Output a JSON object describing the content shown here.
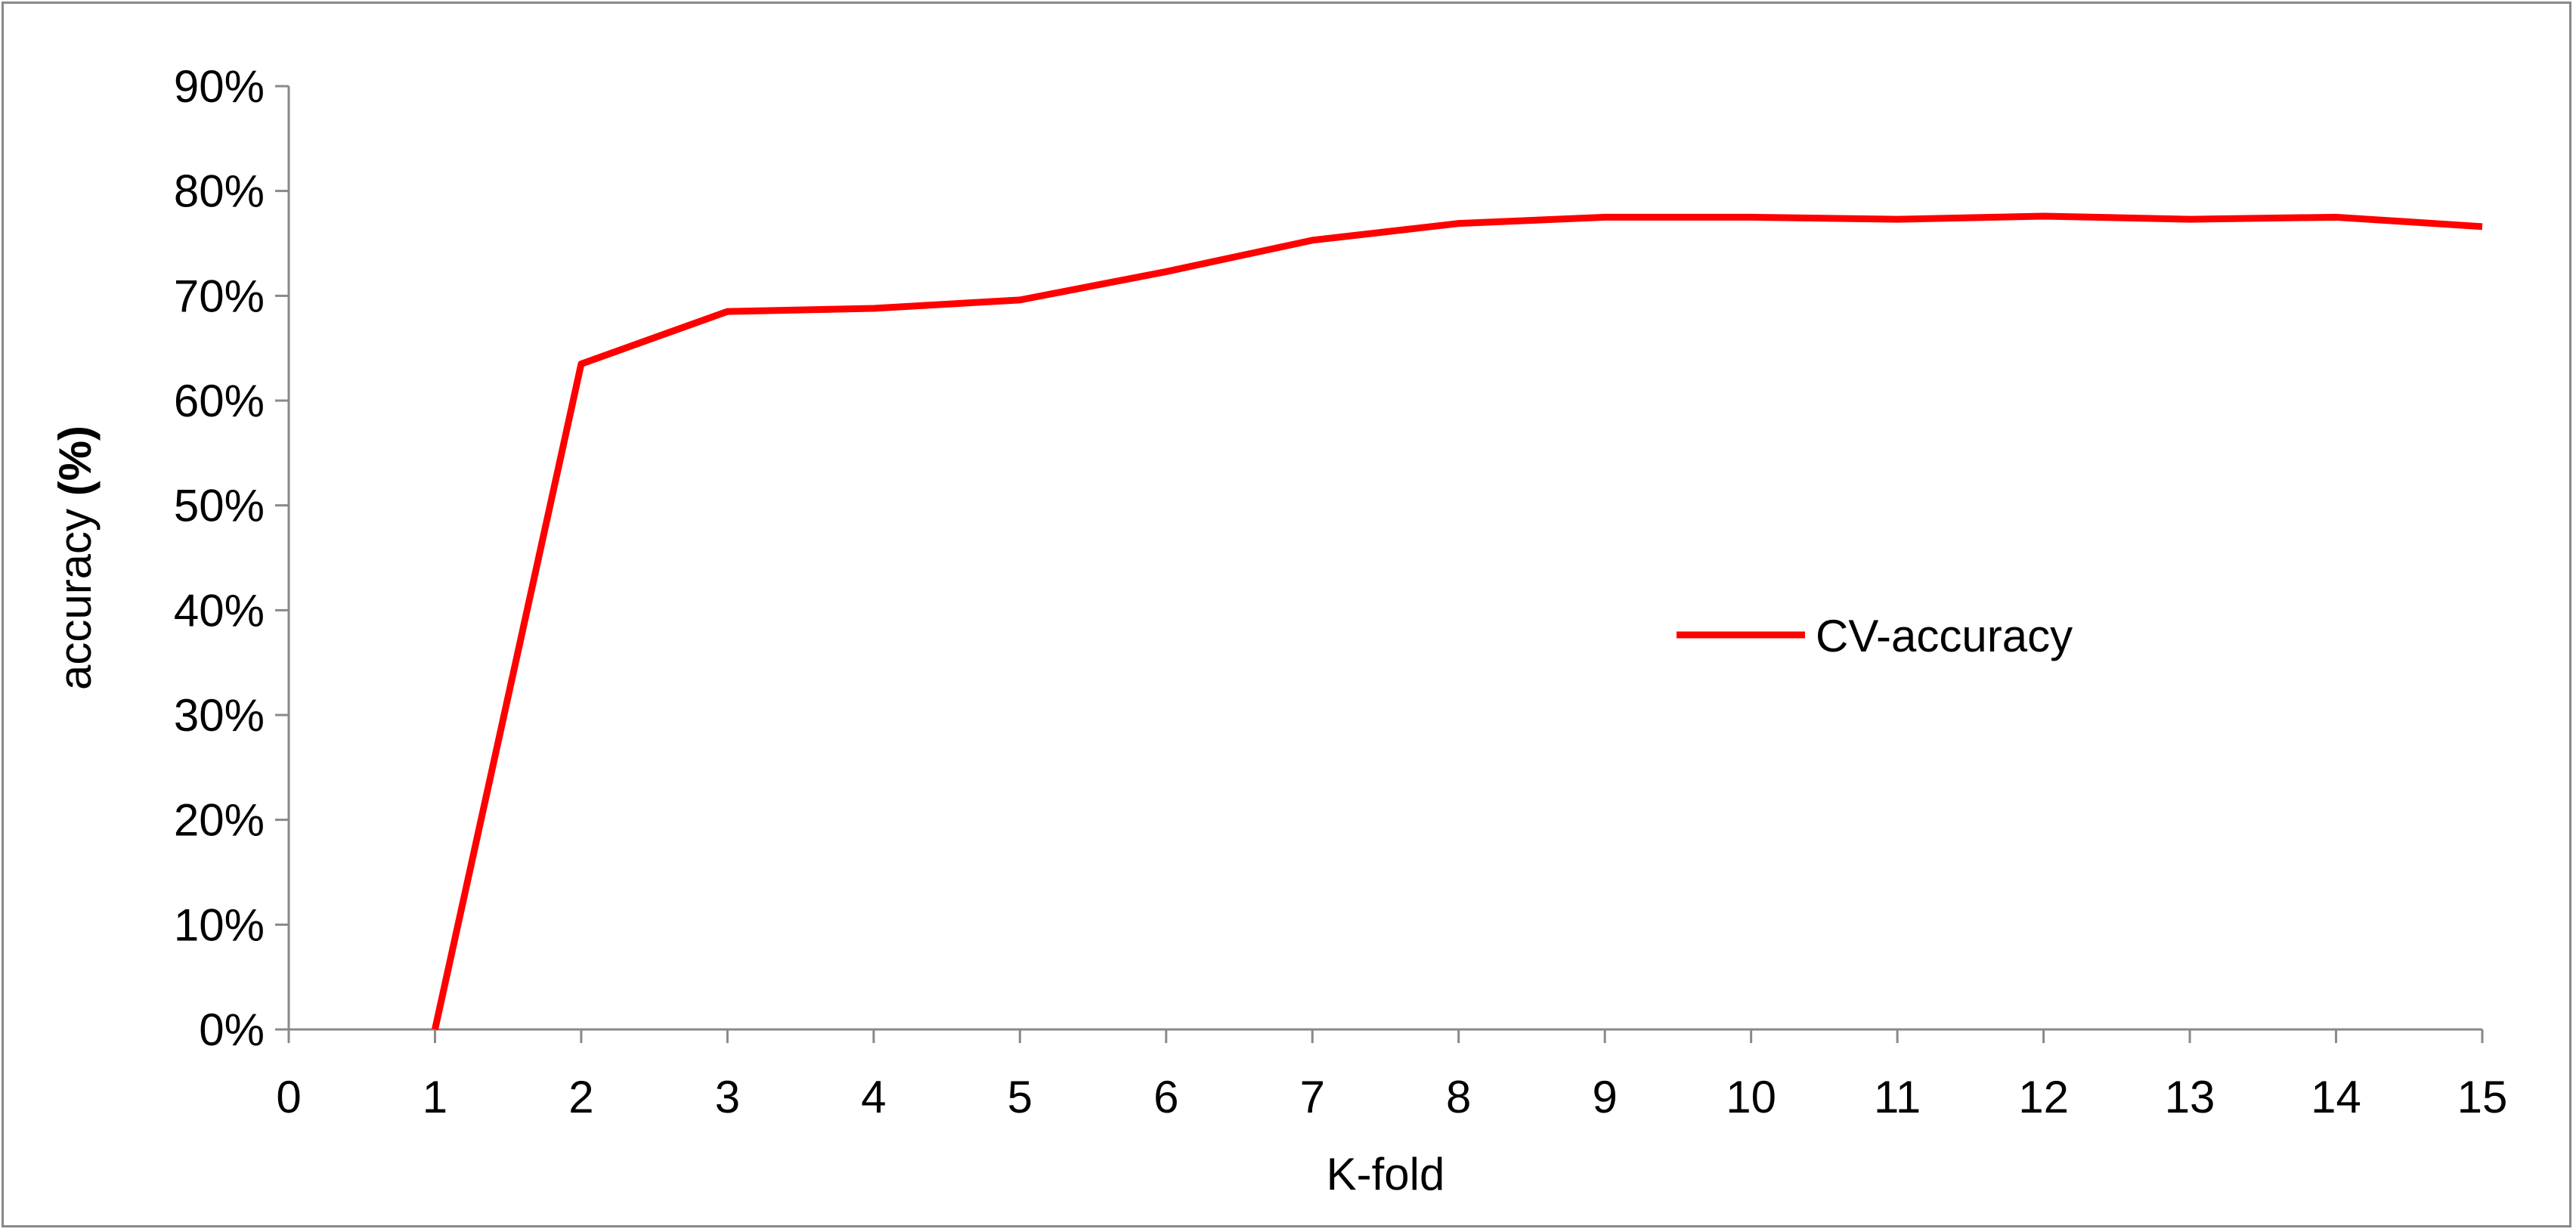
{
  "chart_data": {
    "type": "line",
    "xlabel": "K-fold",
    "ylabel_prefix": "accuracy ",
    "ylabel_bold": "(%)",
    "xlim": [
      0,
      15
    ],
    "ylim": [
      0,
      90
    ],
    "x_ticks": [
      "0",
      "1",
      "2",
      "3",
      "4",
      "5",
      "6",
      "7",
      "8",
      "9",
      "10",
      "11",
      "12",
      "13",
      "14",
      "15"
    ],
    "y_ticks": [
      "0%",
      "10%",
      "20%",
      "30%",
      "40%",
      "50%",
      "60%",
      "70%",
      "80%",
      "90%"
    ],
    "grid": false,
    "legend_position": "right-middle",
    "series": [
      {
        "name": "CV-accuracy",
        "color": "#ff0000",
        "x": [
          1,
          2,
          3,
          4,
          5,
          6,
          7,
          8,
          9,
          10,
          11,
          12,
          13,
          14,
          15
        ],
        "y": [
          0,
          63.5,
          68.5,
          68.8,
          69.6,
          72.3,
          75.3,
          76.9,
          77.5,
          77.5,
          77.3,
          77.6,
          77.3,
          77.5,
          76.6
        ]
      }
    ]
  }
}
